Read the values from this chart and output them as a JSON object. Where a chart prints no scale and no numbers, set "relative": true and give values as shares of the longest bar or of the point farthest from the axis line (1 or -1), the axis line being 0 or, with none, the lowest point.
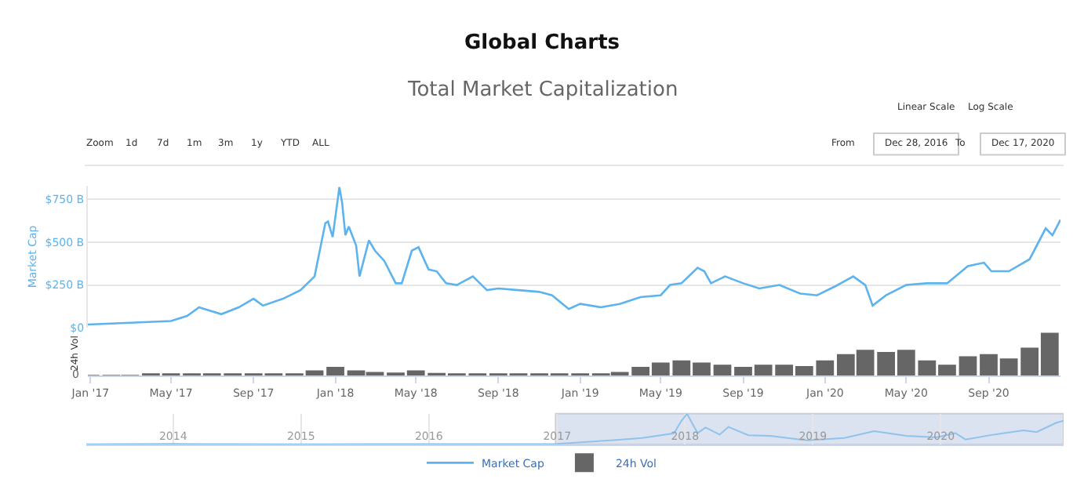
{
  "chart_data": [
    {
      "type": "line",
      "title": "Global Charts",
      "subtitle": "Total Market Capitalization",
      "ylabel": "Market Cap",
      "grid": "y",
      "legend": "bottom",
      "tick_labels": "y",
      "marker": "none",
      "line_style": "solid",
      "xlim": [
        "2016-12-28",
        "2020-12-17"
      ],
      "ylim": [
        0,
        830
      ],
      "yticks": [
        {
          "value": 0,
          "label": "$0"
        },
        {
          "value": 250,
          "label": "$250 B"
        },
        {
          "value": 500,
          "label": "$500 B"
        },
        {
          "value": 750,
          "label": "$750 B"
        }
      ],
      "x": [
        "2016-12-28",
        "2017-03-01",
        "2017-05-01",
        "2017-05-25",
        "2017-06-12",
        "2017-07-15",
        "2017-08-10",
        "2017-09-01",
        "2017-09-15",
        "2017-10-15",
        "2017-11-10",
        "2017-12-01",
        "2017-12-17",
        "2017-12-21",
        "2017-12-28",
        "2018-01-07",
        "2018-01-11",
        "2018-01-16",
        "2018-01-21",
        "2018-02-01",
        "2018-02-06",
        "2018-02-20",
        "2018-03-01",
        "2018-03-15",
        "2018-04-01",
        "2018-04-10",
        "2018-04-25",
        "2018-05-05",
        "2018-05-20",
        "2018-06-01",
        "2018-06-15",
        "2018-07-01",
        "2018-07-25",
        "2018-08-15",
        "2018-09-01",
        "2018-10-01",
        "2018-11-01",
        "2018-11-20",
        "2018-12-15",
        "2019-01-01",
        "2019-02-01",
        "2019-03-01",
        "2019-04-01",
        "2019-05-01",
        "2019-05-15",
        "2019-06-01",
        "2019-06-25",
        "2019-07-05",
        "2019-07-15",
        "2019-08-05",
        "2019-09-01",
        "2019-09-25",
        "2019-10-25",
        "2019-11-25",
        "2019-12-20",
        "2020-01-15",
        "2020-02-12",
        "2020-03-01",
        "2020-03-12",
        "2020-04-01",
        "2020-05-01",
        "2020-06-01",
        "2020-07-01",
        "2020-08-01",
        "2020-08-25",
        "2020-09-05",
        "2020-10-01",
        "2020-11-01",
        "2020-11-25",
        "2020-12-05",
        "2020-12-17"
      ],
      "series": [
        {
          "name": "Market Cap",
          "color": "#5cb3ee",
          "values": [
            20,
            30,
            40,
            70,
            120,
            80,
            120,
            170,
            130,
            170,
            220,
            300,
            610,
            620,
            530,
            820,
            730,
            540,
            590,
            480,
            300,
            510,
            450,
            390,
            260,
            260,
            450,
            470,
            340,
            330,
            260,
            250,
            300,
            220,
            230,
            220,
            210,
            190,
            110,
            140,
            120,
            140,
            180,
            190,
            250,
            260,
            350,
            330,
            260,
            300,
            260,
            230,
            250,
            200,
            190,
            240,
            300,
            250,
            130,
            190,
            250,
            260,
            260,
            360,
            380,
            330,
            330,
            400,
            580,
            540,
            630
          ]
        }
      ]
    },
    {
      "type": "bar",
      "relative": true,
      "ylabel": "24h Vol",
      "legend": "bottom",
      "annotations": [
        "0"
      ],
      "xlim": [
        "2016-12-28",
        "2020-12-17"
      ],
      "xticks": [
        {
          "value": "2017-01-01",
          "label": "Jan '17"
        },
        {
          "value": "2017-05-01",
          "label": "May '17"
        },
        {
          "value": "2017-09-01",
          "label": "Sep '17"
        },
        {
          "value": "2018-01-01",
          "label": "Jan '18"
        },
        {
          "value": "2018-05-01",
          "label": "May '18"
        },
        {
          "value": "2018-09-01",
          "label": "Sep '18"
        },
        {
          "value": "2019-01-01",
          "label": "Jan '19"
        },
        {
          "value": "2019-05-01",
          "label": "May '19"
        },
        {
          "value": "2019-09-01",
          "label": "Sep '19"
        },
        {
          "value": "2020-01-01",
          "label": "Jan '20"
        },
        {
          "value": "2020-05-01",
          "label": "May '20"
        },
        {
          "value": "2020-09-01",
          "label": "Sep '20"
        }
      ],
      "x": [
        "2017-01",
        "2017-02",
        "2017-03",
        "2017-04",
        "2017-05",
        "2017-06",
        "2017-07",
        "2017-08",
        "2017-09",
        "2017-10",
        "2017-11",
        "2017-12",
        "2018-01",
        "2018-02",
        "2018-03",
        "2018-04",
        "2018-05",
        "2018-06",
        "2018-07",
        "2018-08",
        "2018-09",
        "2018-10",
        "2018-11",
        "2018-12",
        "2019-01",
        "2019-02",
        "2019-03",
        "2019-04",
        "2019-05",
        "2019-06",
        "2019-07",
        "2019-08",
        "2019-09",
        "2019-10",
        "2019-11",
        "2019-12",
        "2020-01",
        "2020-02",
        "2020-03",
        "2020-04",
        "2020-05",
        "2020-06",
        "2020-07",
        "2020-08",
        "2020-09",
        "2020-10",
        "2020-11",
        "2020-12"
      ],
      "series": [
        {
          "name": "24h Vol",
          "color": "#666666",
          "values": [
            0.01,
            0.01,
            0.01,
            0.02,
            0.03,
            0.03,
            0.02,
            0.03,
            0.03,
            0.03,
            0.05,
            0.12,
            0.2,
            0.12,
            0.08,
            0.07,
            0.12,
            0.06,
            0.05,
            0.05,
            0.05,
            0.05,
            0.05,
            0.05,
            0.05,
            0.05,
            0.08,
            0.2,
            0.3,
            0.35,
            0.3,
            0.25,
            0.2,
            0.25,
            0.25,
            0.22,
            0.35,
            0.5,
            0.6,
            0.55,
            0.6,
            0.35,
            0.25,
            0.45,
            0.5,
            0.4,
            0.65,
            1.0
          ]
        }
      ]
    },
    {
      "type": "line",
      "relative": true,
      "grid": "x",
      "tick_labels": "x",
      "xlim": [
        "2013-04-28",
        "2020-12-17"
      ],
      "xticks": [
        {
          "value": "2014-01-01",
          "label": "2014"
        },
        {
          "value": "2015-01-01",
          "label": "2015"
        },
        {
          "value": "2016-01-01",
          "label": "2016"
        },
        {
          "value": "2017-01-01",
          "label": "2017"
        },
        {
          "value": "2018-01-01",
          "label": "2018"
        },
        {
          "value": "2019-01-01",
          "label": "2019"
        },
        {
          "value": "2020-01-01",
          "label": "2020"
        }
      ],
      "bands": [
        {
          "axis": "x",
          "from": "2016-12-28",
          "to": "2020-12-17",
          "color": "#ccd6eb"
        }
      ],
      "x": [
        "2013-04-28",
        "2014-01-01",
        "2015-01-01",
        "2016-01-01",
        "2017-01-01",
        "2017-06-12",
        "2017-09-01",
        "2017-12-01",
        "2017-12-21",
        "2018-01-07",
        "2018-02-06",
        "2018-03-01",
        "2018-04-10",
        "2018-05-05",
        "2018-07-01",
        "2018-09-01",
        "2018-12-15",
        "2019-04-01",
        "2019-06-25",
        "2019-09-25",
        "2019-12-20",
        "2020-02-12",
        "2020-03-12",
        "2020-06-01",
        "2020-08-25",
        "2020-10-01",
        "2020-11-25",
        "2020-12-17"
      ],
      "series": [
        {
          "color": "#8fc3ee",
          "values": [
            0.003,
            0.015,
            0.006,
            0.008,
            0.02,
            0.14,
            0.21,
            0.36,
            0.75,
            1,
            0.37,
            0.55,
            0.32,
            0.57,
            0.3,
            0.28,
            0.13,
            0.21,
            0.43,
            0.28,
            0.23,
            0.37,
            0.16,
            0.32,
            0.46,
            0.4,
            0.7,
            0.77
          ]
        }
      ]
    },
    {
      "type": "other",
      "annotations": [
        "Linear Scale",
        "Log Scale",
        "Zoom",
        "1d",
        "7d",
        "1m",
        "3m",
        "1y",
        "YTD",
        "ALL",
        "From",
        "Dec 28, 2016",
        "To",
        "Dec 17, 2020"
      ]
    }
  ]
}
